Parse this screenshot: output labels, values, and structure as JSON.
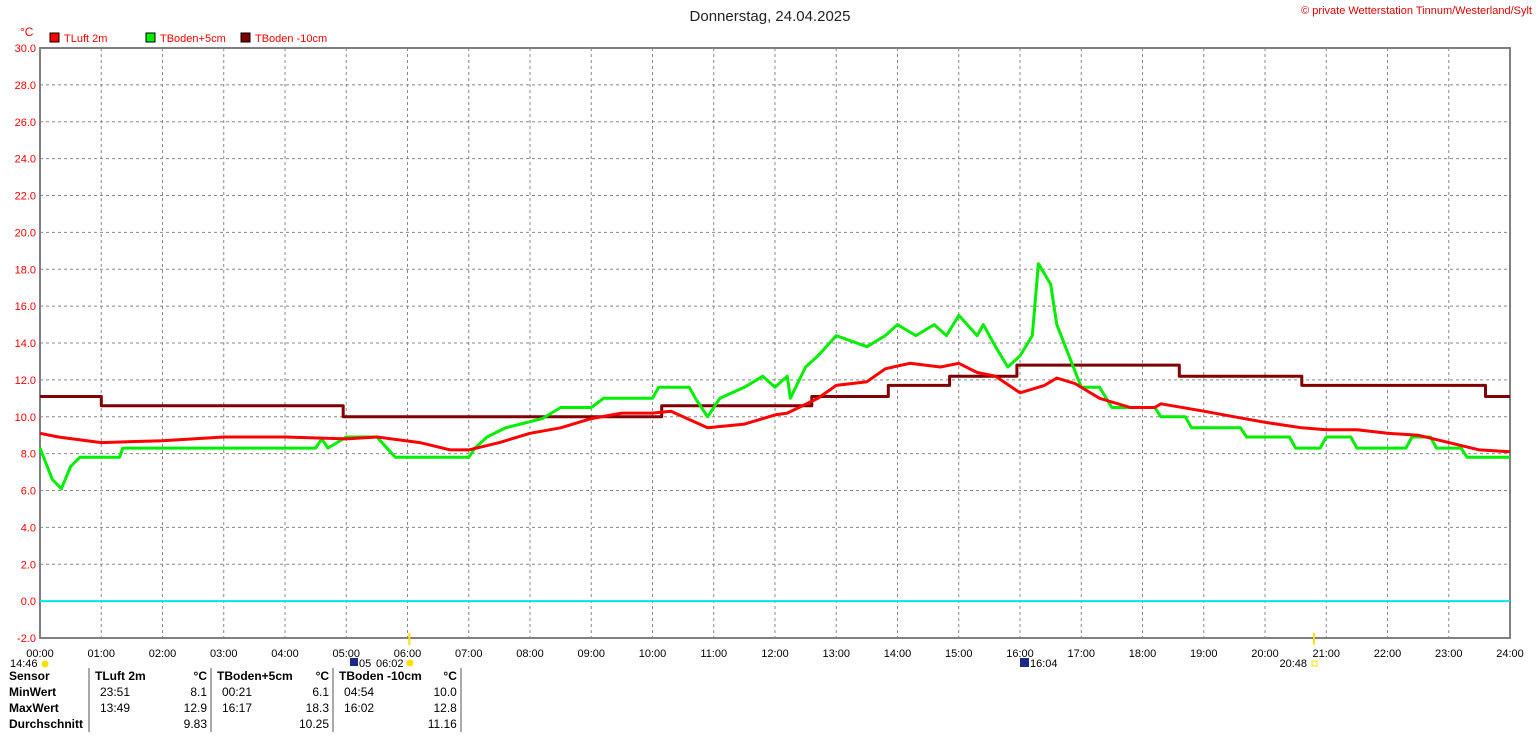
{
  "chart_data": {
    "type": "line",
    "title": "Donnerstag, 24.04.2025",
    "copyright": "© private Wetterstation Tinnum/Westerland/Sylt",
    "ylabel": "°C",
    "ylim": [
      -2,
      30
    ],
    "yticks": [
      "-2.0",
      "0.0",
      "2.0",
      "4.0",
      "6.0",
      "8.0",
      "10.0",
      "12.0",
      "14.0",
      "16.0",
      "18.0",
      "20.0",
      "22.0",
      "24.0",
      "26.0",
      "28.0",
      "30.0"
    ],
    "xlim": [
      0,
      24
    ],
    "xticks": [
      "00:00",
      "01:00",
      "02:00",
      "03:00",
      "04:00",
      "05:00",
      "06:00",
      "07:00",
      "08:00",
      "09:00",
      "10:00",
      "11:00",
      "12:00",
      "13:00",
      "14:00",
      "15:00",
      "16:00",
      "17:00",
      "18:00",
      "19:00",
      "20:00",
      "21:00",
      "22:00",
      "23:00",
      "24:00"
    ],
    "grid": true,
    "legend_position": "top-left",
    "colors": {
      "tluft": "#ff0000",
      "tboden5": "#00ee00",
      "tboden10": "#800000",
      "zero": "#00e5ee"
    },
    "series": [
      {
        "name": "TLuft 2m",
        "color": "#ff0000",
        "points": [
          [
            0,
            9.1
          ],
          [
            0.3,
            8.9
          ],
          [
            1,
            8.6
          ],
          [
            2,
            8.7
          ],
          [
            3,
            8.9
          ],
          [
            4,
            8.9
          ],
          [
            5,
            8.8
          ],
          [
            5.5,
            8.9
          ],
          [
            6.2,
            8.6
          ],
          [
            6.7,
            8.2
          ],
          [
            7,
            8.2
          ],
          [
            7.5,
            8.6
          ],
          [
            8,
            9.1
          ],
          [
            8.5,
            9.4
          ],
          [
            9,
            9.9
          ],
          [
            9.5,
            10.2
          ],
          [
            10,
            10.2
          ],
          [
            10.3,
            10.3
          ],
          [
            10.9,
            9.4
          ],
          [
            11.5,
            9.6
          ],
          [
            12,
            10.1
          ],
          [
            12.2,
            10.2
          ],
          [
            12.7,
            11.0
          ],
          [
            13,
            11.7
          ],
          [
            13.5,
            11.9
          ],
          [
            13.8,
            12.6
          ],
          [
            14.2,
            12.9
          ],
          [
            14.7,
            12.7
          ],
          [
            15,
            12.9
          ],
          [
            15.3,
            12.4
          ],
          [
            15.6,
            12.2
          ],
          [
            16,
            11.3
          ],
          [
            16.4,
            11.7
          ],
          [
            16.6,
            12.1
          ],
          [
            16.9,
            11.8
          ],
          [
            17.3,
            11.0
          ],
          [
            17.8,
            10.5
          ],
          [
            18.2,
            10.5
          ],
          [
            18.3,
            10.7
          ],
          [
            19,
            10.3
          ],
          [
            19.5,
            10.0
          ],
          [
            20,
            9.7
          ],
          [
            20.6,
            9.4
          ],
          [
            21,
            9.3
          ],
          [
            21.5,
            9.3
          ],
          [
            22,
            9.1
          ],
          [
            22.5,
            9.0
          ],
          [
            23,
            8.6
          ],
          [
            23.5,
            8.2
          ],
          [
            24,
            8.1
          ]
        ]
      },
      {
        "name": "TBoden+5cm",
        "color": "#00ee00",
        "points": [
          [
            0,
            8.3
          ],
          [
            0.2,
            6.6
          ],
          [
            0.35,
            6.1
          ],
          [
            0.5,
            7.3
          ],
          [
            0.65,
            7.8
          ],
          [
            1.3,
            7.8
          ],
          [
            1.35,
            8.3
          ],
          [
            4.5,
            8.3
          ],
          [
            4.6,
            8.8
          ],
          [
            4.7,
            8.3
          ],
          [
            5,
            8.9
          ],
          [
            5.5,
            8.9
          ],
          [
            5.8,
            7.8
          ],
          [
            7,
            7.8
          ],
          [
            7.1,
            8.3
          ],
          [
            7.3,
            8.9
          ],
          [
            7.6,
            9.4
          ],
          [
            8.2,
            9.9
          ],
          [
            8.5,
            10.5
          ],
          [
            9,
            10.5
          ],
          [
            9.2,
            11.0
          ],
          [
            10,
            11.0
          ],
          [
            10.1,
            11.6
          ],
          [
            10.6,
            11.6
          ],
          [
            10.7,
            11.0
          ],
          [
            10.9,
            10.0
          ],
          [
            11.1,
            11.0
          ],
          [
            11.5,
            11.6
          ],
          [
            11.8,
            12.2
          ],
          [
            12,
            11.6
          ],
          [
            12.2,
            12.2
          ],
          [
            12.25,
            11.0
          ],
          [
            12.5,
            12.7
          ],
          [
            12.7,
            13.3
          ],
          [
            13,
            14.4
          ],
          [
            13.5,
            13.8
          ],
          [
            13.8,
            14.4
          ],
          [
            14,
            15.0
          ],
          [
            14.3,
            14.4
          ],
          [
            14.6,
            15.0
          ],
          [
            14.8,
            14.4
          ],
          [
            15,
            15.5
          ],
          [
            15.3,
            14.4
          ],
          [
            15.4,
            15.0
          ],
          [
            15.6,
            13.8
          ],
          [
            15.8,
            12.7
          ],
          [
            16,
            13.3
          ],
          [
            16.2,
            14.4
          ],
          [
            16.3,
            18.3
          ],
          [
            16.5,
            17.2
          ],
          [
            16.6,
            15.0
          ],
          [
            16.8,
            13.3
          ],
          [
            17,
            11.6
          ],
          [
            17.3,
            11.6
          ],
          [
            17.5,
            10.5
          ],
          [
            18.2,
            10.5
          ],
          [
            18.3,
            10.0
          ],
          [
            18.7,
            10.0
          ],
          [
            18.8,
            9.4
          ],
          [
            19.6,
            9.4
          ],
          [
            19.7,
            8.9
          ],
          [
            20.4,
            8.9
          ],
          [
            20.5,
            8.3
          ],
          [
            20.9,
            8.3
          ],
          [
            21,
            8.9
          ],
          [
            21.4,
            8.9
          ],
          [
            21.5,
            8.3
          ],
          [
            22.3,
            8.3
          ],
          [
            22.4,
            8.9
          ],
          [
            22.7,
            8.9
          ],
          [
            22.8,
            8.3
          ],
          [
            23.2,
            8.3
          ],
          [
            23.3,
            7.8
          ],
          [
            24,
            7.8
          ]
        ]
      },
      {
        "name": "TBoden -10cm",
        "color": "#800000",
        "points": [
          [
            0,
            11.1
          ],
          [
            1.0,
            11.1
          ],
          [
            1.0,
            10.6
          ],
          [
            4.95,
            10.6
          ],
          [
            4.95,
            10.0
          ],
          [
            10.15,
            10.0
          ],
          [
            10.15,
            10.6
          ],
          [
            12.6,
            10.6
          ],
          [
            12.6,
            11.1
          ],
          [
            13.85,
            11.1
          ],
          [
            13.85,
            11.7
          ],
          [
            14.85,
            11.7
          ],
          [
            14.85,
            12.2
          ],
          [
            15.95,
            12.2
          ],
          [
            15.95,
            12.8
          ],
          [
            18.6,
            12.8
          ],
          [
            18.6,
            12.2
          ],
          [
            20.6,
            12.2
          ],
          [
            20.6,
            11.7
          ],
          [
            23.6,
            11.7
          ],
          [
            23.6,
            11.1
          ],
          [
            24,
            11.1
          ]
        ]
      }
    ],
    "annotations": {
      "moonset": "14:46",
      "sunrise_marker": "05",
      "sunrise": "06:02",
      "moonrise": "16:04",
      "sunset": "20:48"
    }
  },
  "stats": {
    "header": [
      "Sensor",
      "TLuft 2m",
      "°C",
      "TBoden+5cm",
      "°C",
      "TBoden -10cm",
      "°C"
    ],
    "rows": [
      {
        "label": "MinWert",
        "t1": "23:51",
        "v1": "8.1",
        "t2": "00:21",
        "v2": "6.1",
        "t3": "04:54",
        "v3": "10.0"
      },
      {
        "label": "MaxWert",
        "t1": "13:49",
        "v1": "12.9",
        "t2": "16:17",
        "v2": "18.3",
        "t3": "16:02",
        "v3": "12.8"
      },
      {
        "label": "Durchschnitt",
        "t1": "",
        "v1": "9.83",
        "t2": "",
        "v2": "10.25",
        "t3": "",
        "v3": "11.16"
      }
    ]
  }
}
